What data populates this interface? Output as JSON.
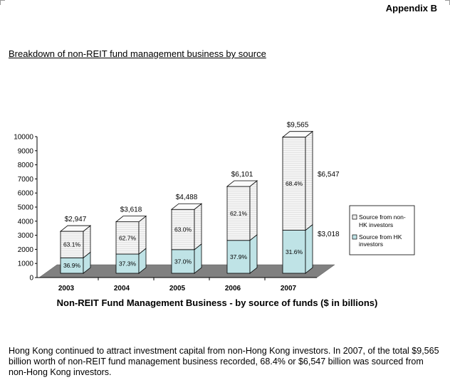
{
  "header": {
    "appendix": "Appendix B"
  },
  "heading": "Breakdown of non-REIT fund management business by source",
  "chart_data": {
    "type": "bar",
    "stacked": true,
    "three_d": true,
    "categories": [
      "2003",
      "2004",
      "2005",
      "2006",
      "2007"
    ],
    "totals": [
      2947,
      3618,
      4488,
      6101,
      9565
    ],
    "total_labels": [
      "$2,947",
      "$3,618",
      "$4,488",
      "$6,101",
      "$9,565"
    ],
    "series": [
      {
        "name": "Source from HK investors",
        "share_labels": [
          "36.9%",
          "37.3%",
          "37.0%",
          "37.9%",
          "31.6%"
        ],
        "shares": [
          36.9,
          37.3,
          37.0,
          37.9,
          31.6
        ],
        "color": "#bfe3e6"
      },
      {
        "name": "Source from non-HK investors",
        "share_labels": [
          "63.1%",
          "62.7%",
          "63.0%",
          "62.1%",
          "68.4%"
        ],
        "shares": [
          63.1,
          62.7,
          63.0,
          62.1,
          68.4
        ],
        "color": "#f2f2f2"
      }
    ],
    "annotations": [
      "$6,547",
      "$3,018"
    ],
    "xlabel": "Non-REIT Fund Management Business - by source of funds ($ in billions)",
    "ylim": [
      0,
      10000
    ],
    "yticks": [
      "0",
      "1000",
      "2000",
      "3000",
      "4000",
      "5000",
      "6000",
      "7000",
      "8000",
      "9000",
      "10000"
    ],
    "legend_position": "right",
    "floor_color": "#808080"
  },
  "paragraph": "Hong Kong continued to attract investment capital from non-Hong Kong investors.  In 2007, of the total $9,565 billion worth of non-REIT fund management business recorded, 68.4% or $6,547 billion was sourced from non-Hong Kong investors."
}
